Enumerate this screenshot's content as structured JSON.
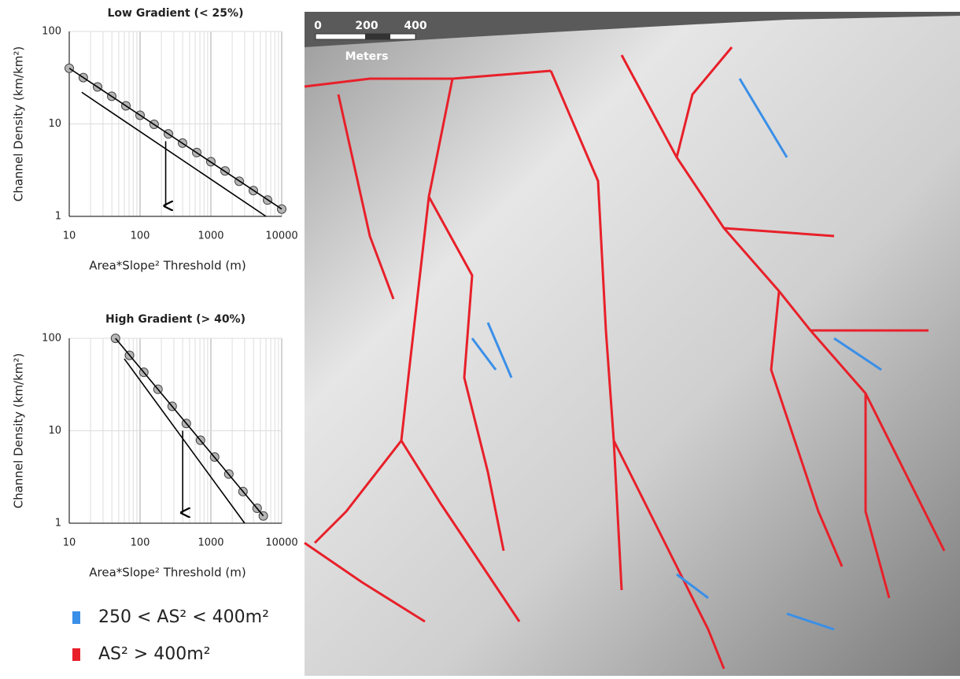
{
  "chart_data": [
    {
      "type": "scatter",
      "title": "Low Gradient (< 25%)",
      "x_label": "Area*Slope² Threshold (m)",
      "y_label": "Channel Density (km/km²)",
      "log_x": true,
      "log_y": true,
      "grid": true,
      "xlim": [
        10,
        10000
      ],
      "ylim": [
        1,
        100
      ],
      "xticks": [
        10,
        100,
        1000,
        10000
      ],
      "yticks": [
        1,
        10,
        100
      ],
      "series": [
        {
          "type": "scatter",
          "color": "#b5b5b5",
          "x": [
            10,
            15.8,
            25.1,
            39.8,
            63.1,
            100,
            158,
            251,
            398,
            631,
            1000,
            1585,
            2512,
            3981,
            6310,
            10000
          ],
          "values": [
            40,
            31.7,
            25.1,
            19.9,
            15.7,
            12.4,
            9.9,
            7.8,
            6.2,
            4.9,
            3.9,
            3.1,
            2.4,
            1.9,
            1.5,
            1.2
          ]
        },
        {
          "type": "line",
          "color": "#000000",
          "x": [
            10,
            10000
          ],
          "values": [
            40,
            1.2
          ]
        },
        {
          "type": "line",
          "color": "#000000",
          "x": [
            15,
            6000
          ],
          "values": [
            22,
            1
          ]
        }
      ],
      "arrow": {
        "x": 230,
        "y": [
          6.5,
          1.3
        ]
      }
    },
    {
      "type": "scatter",
      "title": "High Gradient (> 40%)",
      "x_label": "Area*Slope² Threshold (m)",
      "y_label": "Channel Density (km/km²)",
      "log_x": true,
      "log_y": true,
      "grid": true,
      "xlim": [
        10,
        10000
      ],
      "ylim": [
        1,
        100
      ],
      "xticks": [
        10,
        100,
        1000,
        10000
      ],
      "yticks": [
        1,
        10,
        100
      ],
      "series": [
        {
          "type": "scatter",
          "color": "#b5b5b5",
          "x": [
            45,
            71,
            113,
            179,
            284,
            450,
            713,
            1130,
            1791,
            2839,
            4500,
            5500
          ],
          "values": [
            100,
            65.5,
            42.9,
            28.1,
            18.4,
            12.0,
            7.9,
            5.2,
            3.4,
            2.2,
            1.45,
            1.2
          ]
        },
        {
          "type": "line",
          "color": "#000000",
          "x": [
            45,
            5500
          ],
          "values": [
            100,
            1.2
          ]
        },
        {
          "type": "line",
          "color": "#000000",
          "x": [
            60,
            3000
          ],
          "values": [
            60,
            1
          ]
        }
      ],
      "arrow": {
        "x": 400,
        "y": [
          10,
          1.3
        ]
      }
    }
  ],
  "legend": [
    {
      "label": "250 < AS² < 400m²",
      "color": "#3a8fe8"
    },
    {
      "label": "AS² > 400m²",
      "color": "#e8202a"
    }
  ],
  "map": {
    "scale_bar": {
      "labels": [
        "0",
        "200",
        "400"
      ],
      "unit": "Meters"
    }
  }
}
